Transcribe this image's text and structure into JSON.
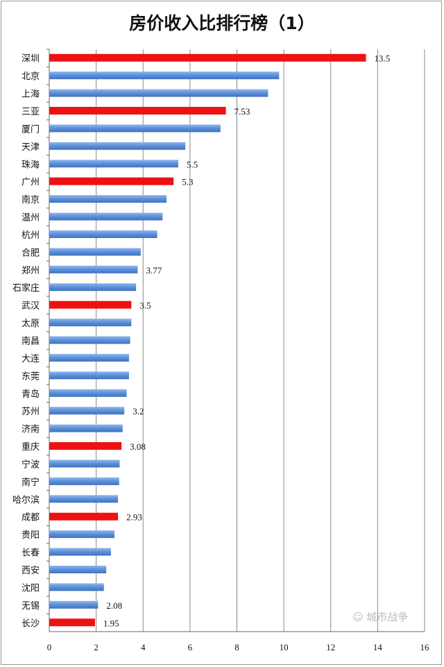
{
  "chart_data": {
    "type": "bar",
    "orientation": "horizontal",
    "title": "房价收入比排行榜（1）",
    "xlabel": "",
    "ylabel": "",
    "xlim": [
      0,
      16
    ],
    "xticks": [
      0,
      2,
      4,
      6,
      8,
      10,
      12,
      14,
      16
    ],
    "grid": true,
    "categories": [
      "深圳",
      "北京",
      "上海",
      "三亚",
      "厦门",
      "天津",
      "珠海",
      "广州",
      "南京",
      "温州",
      "杭州",
      "合肥",
      "郑州",
      "石家庄",
      "武汉",
      "太原",
      "南昌",
      "大连",
      "东莞",
      "青岛",
      "苏州",
      "济南",
      "重庆",
      "宁波",
      "南宁",
      "哈尔滨",
      "成都",
      "贵阳",
      "长春",
      "西安",
      "沈阳",
      "无锡",
      "长沙"
    ],
    "values": [
      13.5,
      9.8,
      9.33,
      7.53,
      7.3,
      5.8,
      5.5,
      5.3,
      5.0,
      4.83,
      4.6,
      3.9,
      3.77,
      3.7,
      3.5,
      3.5,
      3.45,
      3.4,
      3.4,
      3.3,
      3.2,
      3.13,
      3.08,
      3.0,
      2.98,
      2.93,
      2.93,
      2.78,
      2.63,
      2.43,
      2.33,
      2.08,
      1.95
    ],
    "highlighted": [
      "深圳",
      "三亚",
      "广州",
      "武汉",
      "重庆",
      "成都",
      "长沙"
    ],
    "data_labels": {
      "深圳": "13.5",
      "三亚": "7.53",
      "珠海": "5.5",
      "广州": "5.3",
      "郑州": "3.77",
      "武汉": "3.5",
      "苏州": "3.2",
      "重庆": "3.08",
      "成都": "2.93",
      "无锡": "2.08",
      "长沙": "1.95"
    },
    "colors": {
      "default": "#5b8fd9",
      "highlight": "#ee1111",
      "grid": "#888888"
    }
  },
  "watermark": "城市战争"
}
